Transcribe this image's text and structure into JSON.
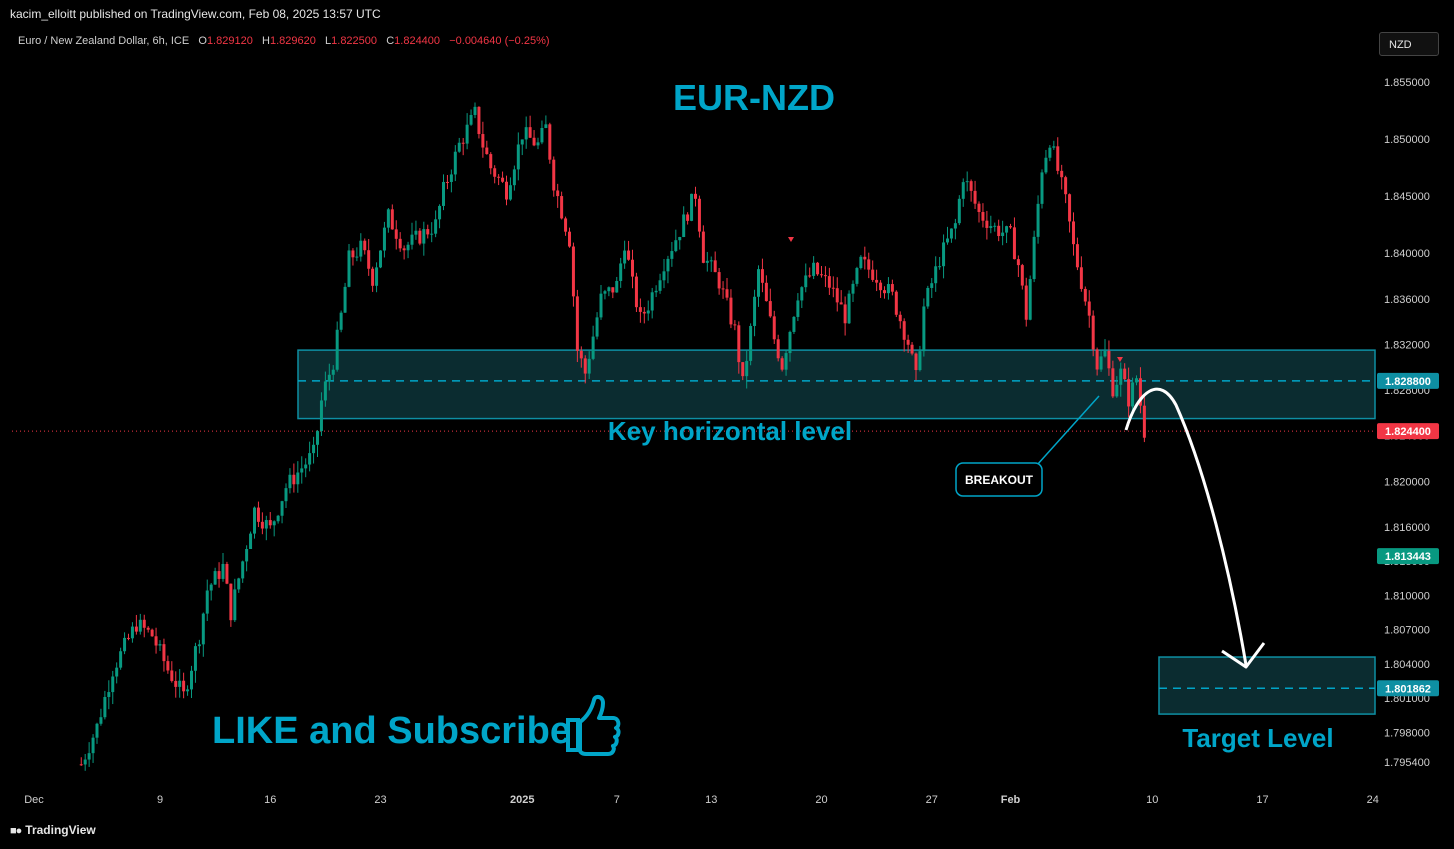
{
  "publish_line": "kacim_elloitt published on TradingView.com, Feb 08, 2025 13:57 UTC",
  "symbol_line": {
    "name": "Euro / New Zealand Dollar, 6h, ICE",
    "open_label": "O",
    "open": "1.829120",
    "high_label": "H",
    "high": "1.829620",
    "low_label": "L",
    "low": "1.822500",
    "close_label": "C",
    "close": "1.824400",
    "change": "−0.004640 (−0.25%)"
  },
  "currency_button": "NZD",
  "brand": "TradingView",
  "colors": {
    "up": "#089981",
    "down": "#f23645",
    "accent": "#00a5c8",
    "zone_fill": "#0d3438",
    "zone_stroke": "#0e8fa3"
  },
  "chart_data": {
    "type": "candlestick",
    "title": "EUR-NZD",
    "symbol": "Euro / New Zealand Dollar",
    "interval": "6h",
    "ylim": [
      1.7925,
      1.8575
    ],
    "y_ticks": [
      "1.855000",
      "1.850000",
      "1.845000",
      "1.840000",
      "1.836000",
      "1.832000",
      "1.828000",
      "1.824000",
      "1.820000",
      "1.816000",
      "1.813000",
      "1.810000",
      "1.807000",
      "1.804000",
      "1.801000",
      "1.798000",
      "1.795400"
    ],
    "x_ticks": [
      {
        "label": "Dec",
        "day": 0
      },
      {
        "label": "9",
        "day": 8
      },
      {
        "label": "16",
        "day": 15
      },
      {
        "label": "23",
        "day": 22
      },
      {
        "label": "2025",
        "day": 31
      },
      {
        "label": "7",
        "day": 37
      },
      {
        "label": "13",
        "day": 43
      },
      {
        "label": "20",
        "day": 50
      },
      {
        "label": "27",
        "day": 57
      },
      {
        "label": "Feb",
        "day": 62
      },
      {
        "label": "10",
        "day": 71
      },
      {
        "label": "17",
        "day": 78
      },
      {
        "label": "24",
        "day": 85
      }
    ],
    "close_path": [
      [
        3.0,
        1.7952
      ],
      [
        4.0,
        1.7985
      ],
      [
        5.0,
        1.8035
      ],
      [
        6.5,
        1.8075
      ],
      [
        7.5,
        1.8065
      ],
      [
        8.5,
        1.8035
      ],
      [
        9.5,
        1.8012
      ],
      [
        10.5,
        1.8065
      ],
      [
        11.0,
        1.8105
      ],
      [
        12.0,
        1.8125
      ],
      [
        12.5,
        1.8085
      ],
      [
        13.5,
        1.8145
      ],
      [
        14.0,
        1.8175
      ],
      [
        15.0,
        1.8158
      ],
      [
        16.0,
        1.8195
      ],
      [
        17.0,
        1.8212
      ],
      [
        17.8,
        1.8225
      ],
      [
        18.3,
        1.8275
      ],
      [
        19.0,
        1.8305
      ],
      [
        19.5,
        1.8345
      ],
      [
        20.0,
        1.8395
      ],
      [
        20.8,
        1.8405
      ],
      [
        21.5,
        1.8378
      ],
      [
        22.5,
        1.8432
      ],
      [
        23.5,
        1.8405
      ],
      [
        24.5,
        1.8415
      ],
      [
        25.5,
        1.8425
      ],
      [
        26.0,
        1.8455
      ],
      [
        27.0,
        1.8495
      ],
      [
        28.0,
        1.8522
      ],
      [
        28.5,
        1.8495
      ],
      [
        29.0,
        1.8475
      ],
      [
        30.0,
        1.8455
      ],
      [
        31.0,
        1.8505
      ],
      [
        32.0,
        1.8495
      ],
      [
        32.5,
        1.851
      ],
      [
        33.0,
        1.8462
      ],
      [
        34.0,
        1.8412
      ],
      [
        34.5,
        1.8315
      ],
      [
        35.0,
        1.8295
      ],
      [
        36.0,
        1.836
      ],
      [
        37.0,
        1.8372
      ],
      [
        37.5,
        1.841
      ],
      [
        38.0,
        1.8372
      ],
      [
        38.5,
        1.8342
      ],
      [
        39.0,
        1.8355
      ],
      [
        40.0,
        1.8392
      ],
      [
        41.0,
        1.842
      ],
      [
        42.0,
        1.8452
      ],
      [
        42.5,
        1.8398
      ],
      [
        43.5,
        1.8375
      ],
      [
        44.5,
        1.8332
      ],
      [
        45.0,
        1.8285
      ],
      [
        45.5,
        1.8332
      ],
      [
        46.0,
        1.8385
      ],
      [
        47.0,
        1.8325
      ],
      [
        47.5,
        1.8302
      ],
      [
        48.5,
        1.8365
      ],
      [
        49.5,
        1.8385
      ],
      [
        50.5,
        1.8372
      ],
      [
        51.5,
        1.8345
      ],
      [
        52.5,
        1.8392
      ],
      [
        53.5,
        1.838
      ],
      [
        54.5,
        1.8362
      ],
      [
        55.5,
        1.8322
      ],
      [
        56.0,
        1.829
      ],
      [
        56.5,
        1.8352
      ],
      [
        57.5,
        1.8395
      ],
      [
        58.5,
        1.8425
      ],
      [
        59.0,
        1.8468
      ],
      [
        60.0,
        1.8435
      ],
      [
        61.0,
        1.8422
      ],
      [
        62.0,
        1.8415
      ],
      [
        62.5,
        1.839
      ],
      [
        63.0,
        1.8345
      ],
      [
        63.5,
        1.841
      ],
      [
        64.0,
        1.8475
      ],
      [
        64.5,
        1.85
      ],
      [
        65.5,
        1.8445
      ],
      [
        66.0,
        1.8405
      ],
      [
        66.5,
        1.8375
      ],
      [
        67.0,
        1.8345
      ],
      [
        67.5,
        1.8302
      ],
      [
        68.0,
        1.8312
      ],
      [
        68.5,
        1.8282
      ],
      [
        69.0,
        1.8295
      ],
      [
        69.5,
        1.8272
      ],
      [
        70.0,
        1.8291
      ],
      [
        70.5,
        1.8244
      ]
    ],
    "key_zone": {
      "label": "Key horizontal level",
      "from": 1.8255,
      "to": 1.8315,
      "mid": 1.8288
    },
    "target_zone": {
      "label": "Target Level",
      "from": 1.7996,
      "to": 1.8046,
      "mid": 1.801862
    },
    "breakout_label": "BREAKOUT",
    "price_labels": [
      {
        "value": "1.828800",
        "color": "#0e8fa3"
      },
      {
        "value": "1.824400",
        "color": "#f23645"
      },
      {
        "value": "1.813443",
        "color": "#089981"
      },
      {
        "value": "1.801862",
        "color": "#0e8fa3"
      }
    ],
    "annotations": [
      "LIKE and Subscribe"
    ]
  }
}
